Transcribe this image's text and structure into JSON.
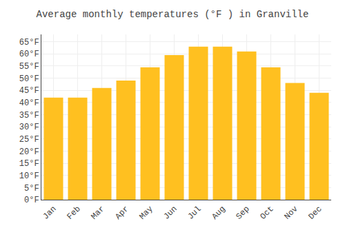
{
  "chart_data": {
    "type": "bar",
    "title": "Average monthly temperatures (°F ) in Granville",
    "categories": [
      "Jan",
      "Feb",
      "Mar",
      "Apr",
      "May",
      "Jun",
      "Jul",
      "Aug",
      "Sep",
      "Oct",
      "Nov",
      "Dec"
    ],
    "values": [
      42,
      42,
      46,
      49,
      54.5,
      59.5,
      63,
      63,
      61,
      54.5,
      48,
      44
    ],
    "color": "#FFC020",
    "ylim": [
      0,
      68
    ],
    "yticks": [
      {
        "value": 0,
        "label": "0°F"
      },
      {
        "value": 5,
        "label": "5°F"
      },
      {
        "value": 10,
        "label": "10°F"
      },
      {
        "value": 15,
        "label": "15°F"
      },
      {
        "value": 20,
        "label": "20°F"
      },
      {
        "value": 25,
        "label": "25°F"
      },
      {
        "value": 30,
        "label": "30°F"
      },
      {
        "value": 35,
        "label": "35°F"
      },
      {
        "value": 40,
        "label": "40°F"
      },
      {
        "value": 45,
        "label": "45°F"
      },
      {
        "value": 50,
        "label": "50°F"
      },
      {
        "value": 55,
        "label": "55°F"
      },
      {
        "value": 60,
        "label": "60°F"
      },
      {
        "value": 65,
        "label": "65°F"
      }
    ],
    "grid": true
  }
}
